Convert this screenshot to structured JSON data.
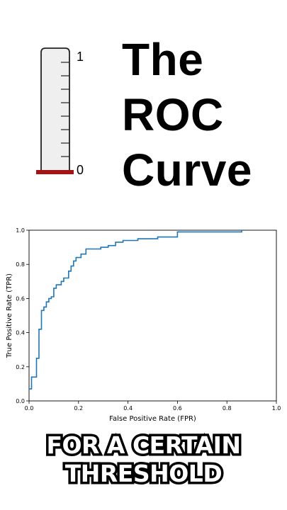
{
  "gauge": {
    "top_label": "1",
    "bottom_label": "0",
    "fill_level": 0,
    "fill_color": "#a31515"
  },
  "title": {
    "line1": "The",
    "line2": "ROC",
    "line3": "Curve"
  },
  "caption": {
    "line1": "FOR A CERTAIN",
    "line2": "THRESHOLD"
  },
  "chart_data": {
    "type": "line",
    "title": "",
    "xlabel": "False Positive Rate (FPR)",
    "ylabel": "True Positive Rate (TPR)",
    "xlim": [
      0,
      1
    ],
    "ylim": [
      0,
      1
    ],
    "xticks": [
      "0.0",
      "0.2",
      "0.4",
      "0.6",
      "0.8",
      "1.0"
    ],
    "yticks": [
      "0.0",
      "0.2",
      "0.4",
      "0.6",
      "0.8",
      "1.0"
    ],
    "grid": false,
    "series": [
      {
        "color": "#1f77b4",
        "x": [
          0,
          0.01,
          0.01,
          0.03,
          0.03,
          0.04,
          0.04,
          0.05,
          0.05,
          0.06,
          0.06,
          0.07,
          0.07,
          0.08,
          0.08,
          0.09,
          0.09,
          0.1,
          0.1,
          0.11,
          0.11,
          0.13,
          0.13,
          0.14,
          0.14,
          0.16,
          0.16,
          0.17,
          0.17,
          0.18,
          0.18,
          0.19,
          0.19,
          0.21,
          0.21,
          0.23,
          0.23,
          0.29,
          0.29,
          0.32,
          0.32,
          0.35,
          0.35,
          0.38,
          0.38,
          0.44,
          0.44,
          0.52,
          0.52,
          0.6,
          0.6,
          0.86,
          0.86
        ],
        "y": [
          0.07,
          0.07,
          0.14,
          0.14,
          0.25,
          0.25,
          0.42,
          0.42,
          0.53,
          0.53,
          0.55,
          0.55,
          0.58,
          0.58,
          0.6,
          0.6,
          0.61,
          0.61,
          0.66,
          0.66,
          0.68,
          0.68,
          0.7,
          0.7,
          0.72,
          0.72,
          0.76,
          0.76,
          0.79,
          0.79,
          0.82,
          0.82,
          0.84,
          0.84,
          0.86,
          0.86,
          0.89,
          0.89,
          0.9,
          0.9,
          0.91,
          0.91,
          0.93,
          0.93,
          0.94,
          0.94,
          0.95,
          0.95,
          0.96,
          0.96,
          0.99,
          0.99,
          1.0
        ]
      }
    ]
  }
}
